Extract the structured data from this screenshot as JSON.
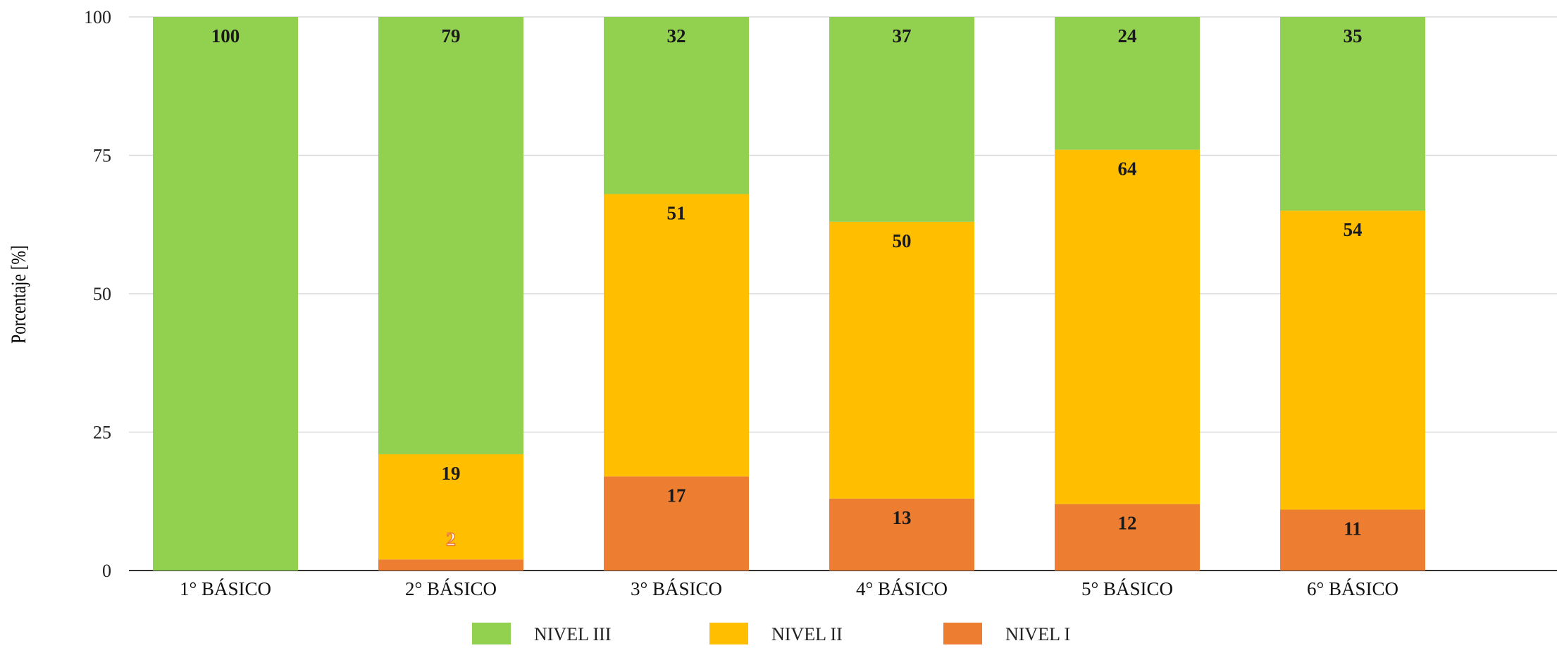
{
  "chart_data": {
    "type": "bar",
    "stacked": true,
    "title": "",
    "xlabel": "",
    "ylabel": "Porcentaje [%]",
    "ylim": [
      0,
      100
    ],
    "yticks": [
      "0",
      "25",
      "50",
      "75",
      "100"
    ],
    "grid": true,
    "legend_position": "bottom",
    "categories": [
      "1° BÁSICO",
      "2° BÁSICO",
      "3° BÁSICO",
      "4° BÁSICO",
      "5° BÁSICO",
      "6° BÁSICO"
    ],
    "series": [
      {
        "name": "NIVEL I",
        "color": "#ED7D31",
        "values": [
          0,
          2,
          17,
          13,
          12,
          11
        ]
      },
      {
        "name": "NIVEL II",
        "color": "#FFBF00",
        "values": [
          0,
          19,
          51,
          50,
          64,
          54
        ]
      },
      {
        "name": "NIVEL III",
        "color": "#92D050",
        "values": [
          100,
          79,
          32,
          37,
          24,
          35
        ]
      }
    ],
    "data_labels": [
      [
        null,
        "2",
        "17",
        "13",
        "12",
        "11"
      ],
      [
        null,
        "19",
        "51",
        "50",
        "64",
        "54"
      ],
      [
        "100",
        "79",
        "32",
        "37",
        "24",
        "35"
      ]
    ],
    "legend": [
      "NIVEL III",
      "NIVEL II",
      "NIVEL I"
    ]
  }
}
